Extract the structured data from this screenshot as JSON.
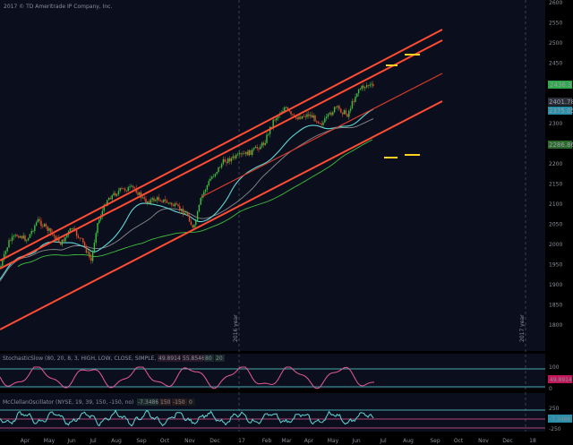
{
  "header": {
    "copyright": "2017 © TD Ameritrade IP Company, Inc."
  },
  "colors": {
    "background": "#000000",
    "plot_background": "#0b0f1d",
    "channel": "#ff4c33",
    "inner_channel": "#d93a2a",
    "candle_up": "#3fbf3f",
    "candle_down": "#e8502a",
    "ma_fast": "#5fd8d8",
    "ma_mid": "#8a8a8a",
    "ma_slow": "#3fbf3f",
    "stochastic": "#e85a9a",
    "mcclellan": "#5fd8d8",
    "target_marks": "#ffd21f"
  },
  "price_axis": {
    "ticks": [
      "2600",
      "2550",
      "2500",
      "2450",
      "2400",
      "2350",
      "2300",
      "2250",
      "2200",
      "2150",
      "2100",
      "2050",
      "2000",
      "1950",
      "1900",
      "1850",
      "1800"
    ],
    "badges": [
      {
        "label": "2436.3",
        "color": "#2ea84a"
      },
      {
        "label": "2401.78",
        "color": "#2a2f3a"
      },
      {
        "label": "2375.05",
        "color": "#2a8fa8"
      },
      {
        "label": "2286.86",
        "color": "#2a6a2a"
      }
    ]
  },
  "separators": [
    "2016 year",
    "2017 year"
  ],
  "time_axis": [
    "Apr",
    "May",
    "Jun",
    "Jul",
    "Aug",
    "Sep",
    "Oct",
    "Nov",
    "Dec",
    "17",
    "Feb",
    "Mar",
    "Apr",
    "May",
    "Jun",
    "Jul",
    "Aug",
    "Sep",
    "Oct",
    "Nov",
    "Dec",
    "18"
  ],
  "stochastic_panel": {
    "title": "StochasticSlow (80, 20, 8, 3, HIGH, LOW, CLOSE, SIMPLE, No)",
    "value": "49.8914",
    "value2": "55.8546",
    "over": "80",
    "under": "20",
    "axis": [
      "100",
      "49.8914",
      "0"
    ]
  },
  "mcclellan_panel": {
    "title": "McClellanOscillator (NYSE, 19, 39, 150, -150, no)",
    "value": "-7.3486",
    "upper": "150",
    "lower": "-150",
    "zero": "0",
    "axis": [
      "250",
      "-7.3486",
      "-250"
    ]
  }
}
